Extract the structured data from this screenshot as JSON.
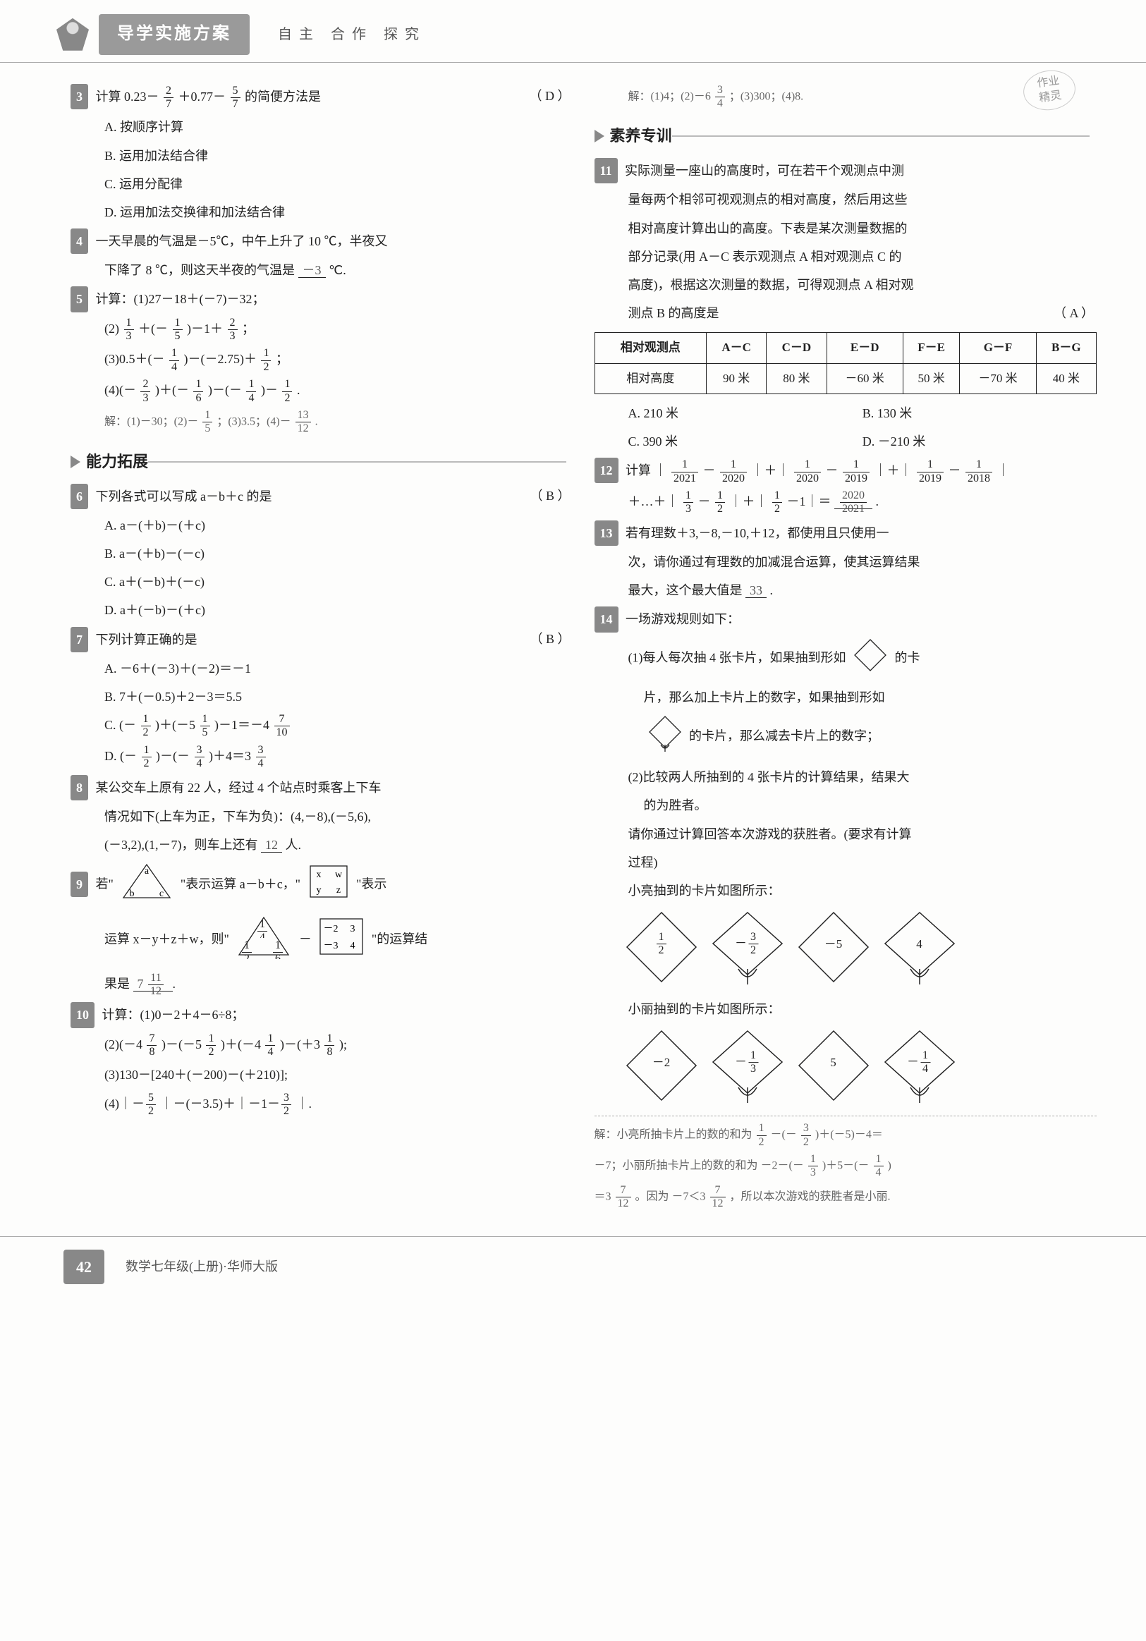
{
  "header": {
    "title": "导学实施方案",
    "subtitle": "自主  合作  探究"
  },
  "stamp": {
    "line1": "作业",
    "line2": "精灵"
  },
  "left": {
    "q3": {
      "num": "3",
      "text_before": "计算 0.23－",
      "frac1_n": "2",
      "frac1_d": "7",
      "text_mid": "＋0.77－",
      "frac2_n": "5",
      "frac2_d": "7",
      "text_after": " 的简便方法是",
      "paren": "（  D  ）",
      "optA": "A. 按顺序计算",
      "optB": "B. 运用加法结合律",
      "optC": "C. 运用分配律",
      "optD": "D. 运用加法交换律和加法结合律"
    },
    "q4": {
      "num": "4",
      "line1": "一天早晨的气温是－5℃，中午上升了 10 ℃，半夜又",
      "line2a": "下降了 8 ℃，则这天半夜的气温是",
      "ans": "－3",
      "line2b": "℃."
    },
    "q5": {
      "num": "5",
      "stem": "计算：(1)27－18＋(－7)－32；",
      "item2_a": "(2)",
      "item2_f1n": "1",
      "item2_f1d": "3",
      "item2_mid1": "＋(－",
      "item2_f2n": "1",
      "item2_f2d": "5",
      "item2_mid2": ")－1＋",
      "item2_f3n": "2",
      "item2_f3d": "3",
      "item2_end": "；",
      "item3_a": "(3)0.5＋(－",
      "item3_f1n": "1",
      "item3_f1d": "4",
      "item3_mid": ")－(－2.75)＋",
      "item3_f2n": "1",
      "item3_f2d": "2",
      "item3_end": "；",
      "item4_a": "(4)(－",
      "item4_f1n": "2",
      "item4_f1d": "3",
      "item4_mid1": ")＋(－",
      "item4_f2n": "1",
      "item4_f2d": "6",
      "item4_mid2": ")－(－",
      "item4_f3n": "1",
      "item4_f3d": "4",
      "item4_mid3": ")－",
      "item4_f4n": "1",
      "item4_f4d": "2",
      "item4_end": ".",
      "sol_a": "解：(1)－30；(2)－",
      "sol_f1n": "1",
      "sol_f1d": "5",
      "sol_mid": "；(3)3.5；(4)－",
      "sol_f2n": "13",
      "sol_f2d": "12",
      "sol_end": "."
    },
    "sec_ability": "能力拓展",
    "q6": {
      "num": "6",
      "stem": "下列各式可以写成 a－b＋c 的是",
      "paren": "（  B  ）",
      "optA": "A. a－(＋b)－(＋c)",
      "optB": "B. a－(＋b)－(－c)",
      "optC": "C. a＋(－b)＋(－c)",
      "optD": "D. a＋(－b)－(＋c)"
    },
    "q7": {
      "num": "7",
      "stem": "下列计算正确的是",
      "paren": "（  B  ）",
      "optA": "A. －6＋(－3)＋(－2)＝－1",
      "optB": "B. 7＋(－0.5)＋2－3＝5.5",
      "optC_a": "C. (－",
      "optC_f1n": "1",
      "optC_f1d": "2",
      "optC_mid": ")＋(－5 ",
      "optC_f2n": "1",
      "optC_f2d": "5",
      "optC_mid2": ")－1＝－4 ",
      "optC_f3n": "7",
      "optC_f3d": "10",
      "optD_a": "D. (－",
      "optD_f1n": "1",
      "optD_f1d": "2",
      "optD_mid": ")－(－",
      "optD_f2n": "3",
      "optD_f2d": "4",
      "optD_mid2": ")＋4＝3 ",
      "optD_f3n": "3",
      "optD_f3d": "4"
    },
    "q8": {
      "num": "8",
      "line1": "某公交车上原有 22 人，经过 4 个站点时乘客上下车",
      "line2": "情况如下(上车为正，下车为负)：(4,－8),(－5,6),",
      "line3a": "(－3,2),(1,－7)，则车上还有",
      "ans": "12",
      "line3b": "人."
    },
    "q9": {
      "num": "9",
      "text1": "若\"",
      "tri_a": "a",
      "tri_b": "b",
      "tri_c": "c",
      "text2": "\"表示运算 a－b＋c，\"",
      "sq_x": "x",
      "sq_w": "w",
      "sq_y": "y",
      "sq_z": "z",
      "text3": "\"表示",
      "text4": "运算 x－y＋z＋w，则\"",
      "tri2_a_n": "1",
      "tri2_a_d": "4",
      "tri2_b_n": "1",
      "tri2_b_d": "2",
      "tri2_c_n": "1",
      "tri2_c_d": "6",
      "text5": " － ",
      "sq2_x": "－2",
      "sq2_w": "3",
      "sq2_y": "－3",
      "sq2_z": "4",
      "text6": "\"的运算结",
      "result_pre": "果是  ",
      "result_int": "7",
      "result_fn": "11",
      "result_fd": "12",
      "result_post": "  ."
    },
    "q10": {
      "num": "10",
      "stem": "计算：(1)0－2＋4－6÷8；",
      "item2_a": "(2)(－4 ",
      "item2_f1n": "7",
      "item2_f1d": "8",
      "item2_mid1": ")－(－5 ",
      "item2_f2n": "1",
      "item2_f2d": "2",
      "item2_mid2": ")＋(－4 ",
      "item2_f3n": "1",
      "item2_f3d": "4",
      "item2_mid3": ")－(＋3 ",
      "item2_f4n": "1",
      "item2_f4d": "8",
      "item2_end": ");",
      "item3": "(3)130－[240＋(－200)－(＋210)];",
      "item4_a": "(4)｜－",
      "item4_f1n": "5",
      "item4_f1d": "2",
      "item4_mid1": "｜－(－3.5)＋｜－1－",
      "item4_f2n": "3",
      "item4_f2d": "2",
      "item4_end": "｜."
    }
  },
  "right": {
    "topans_a": "解：(1)4；(2)－6 ",
    "topans_fn": "3",
    "topans_fd": "4",
    "topans_mid": "；(3)300；(4)8",
    "topans_end": ".",
    "sec_suyang": "素养专训",
    "q11": {
      "num": "11",
      "line1": "实际测量一座山的高度时，可在若干个观测点中测",
      "line2": "量每两个相邻可视观测点的相对高度，然后用这些",
      "line3": "相对高度计算出山的高度。下表是某次测量数据的",
      "line4": "部分记录(用 A－C 表示观测点 A 相对观测点 C 的",
      "line5": "高度)，根据这次测量的数据，可得观测点 A 相对观",
      "line6": "测点 B 的高度是",
      "paren": "（  A  ）",
      "table": {
        "row1": [
          "相对观测点",
          "A－C",
          "C－D",
          "E－D",
          "F－E",
          "G－F",
          "B－G"
        ],
        "row2": [
          "相对高度",
          "90 米",
          "80 米",
          "－60 米",
          "50 米",
          "－70 米",
          "40 米"
        ]
      },
      "optA": "A. 210 米",
      "optB": "B. 130 米",
      "optC": "C. 390 米",
      "optD": "D. －210 米"
    },
    "q12": {
      "num": "12",
      "p1a": "计算 ｜",
      "p1f1n": "1",
      "p1f1d": "2021",
      "p1m1": "－",
      "p1f2n": "1",
      "p1f2d": "2020",
      "p1m2": "｜＋｜",
      "p1f3n": "1",
      "p1f3d": "2020",
      "p1m3": "－",
      "p1f4n": "1",
      "p1f4d": "2019",
      "p1m4": "｜＋｜",
      "p1f5n": "1",
      "p1f5d": "2019",
      "p1m5": "－",
      "p1f6n": "1",
      "p1f6d": "2018",
      "p1e": "｜",
      "p2a": "＋…＋｜",
      "p2f1n": "1",
      "p2f1d": "3",
      "p2m1": "－",
      "p2f2n": "1",
      "p2f2d": "2",
      "p2m2": "｜＋｜",
      "p2f3n": "1",
      "p2f3d": "2",
      "p2m3": "－1｜＝",
      "p2ansn": "2020",
      "p2ansd": "2021",
      "p2end": "."
    },
    "q13": {
      "num": "13",
      "line1": "若有理数＋3,－8,－10,＋12，都使用且只使用一",
      "line2": "次，请你通过有理数的加减混合运算，使其运算结果",
      "line3a": "最大，这个最大值是",
      "ans": "33",
      "line3b": "."
    },
    "q14": {
      "num": "14",
      "stem": "一场游戏规则如下：",
      "rule1a": "(1)每人每次抽 4 张卡片，如果抽到形如",
      "rule1b": "的卡",
      "rule1c": "片，那么加上卡片上的数字，如果抽到形如",
      "rule1d": "的卡片，那么减去卡片上的数字；",
      "rule2a": "(2)比较两人所抽到的 4 张卡片的计算结果，结果大",
      "rule2b": "的为胜者。",
      "prompt1": "请你通过计算回答本次游戏的获胜者。(要求有计算",
      "prompt2": "过程)",
      "liang_label": "小亮抽到的卡片如图所示：",
      "liang_cards": [
        {
          "shape": "diamond",
          "val_n": "1",
          "val_d": "2"
        },
        {
          "shape": "spade",
          "val_pre": "－",
          "val_n": "3",
          "val_d": "2"
        },
        {
          "shape": "diamond",
          "val": "－5"
        },
        {
          "shape": "spade",
          "val": "4"
        }
      ],
      "li_label": "小丽抽到的卡片如图所示：",
      "li_cards": [
        {
          "shape": "diamond",
          "val": "－2"
        },
        {
          "shape": "spade",
          "val_pre": "－",
          "val_n": "1",
          "val_d": "3"
        },
        {
          "shape": "diamond",
          "val": "5"
        },
        {
          "shape": "spade",
          "val_pre": "－",
          "val_n": "1",
          "val_d": "4"
        }
      ],
      "sol_l1a": "解：小亮所抽卡片上的数的和为 ",
      "sol_l1f1n": "1",
      "sol_l1f1d": "2",
      "sol_l1m1": "－(－",
      "sol_l1f2n": "3",
      "sol_l1f2d": "2",
      "sol_l1m2": ")＋(－5)－4＝",
      "sol_l2a": "－7；小丽所抽卡片上的数的和为 －2－(－",
      "sol_l2f1n": "1",
      "sol_l2f1d": "3",
      "sol_l2m1": ")＋5－(－",
      "sol_l2f2n": "1",
      "sol_l2f2d": "4",
      "sol_l2e": ")",
      "sol_l3a": "＝3 ",
      "sol_l3fn": "7",
      "sol_l3fd": "12",
      "sol_l3m1": "。因为 －7＜3 ",
      "sol_l3f2n": "7",
      "sol_l3f2d": "12",
      "sol_l3e": "，所以本次游戏的获胜者是小丽."
    }
  },
  "footer": {
    "page": "42",
    "text": "数学七年级(上册)·华师大版"
  }
}
